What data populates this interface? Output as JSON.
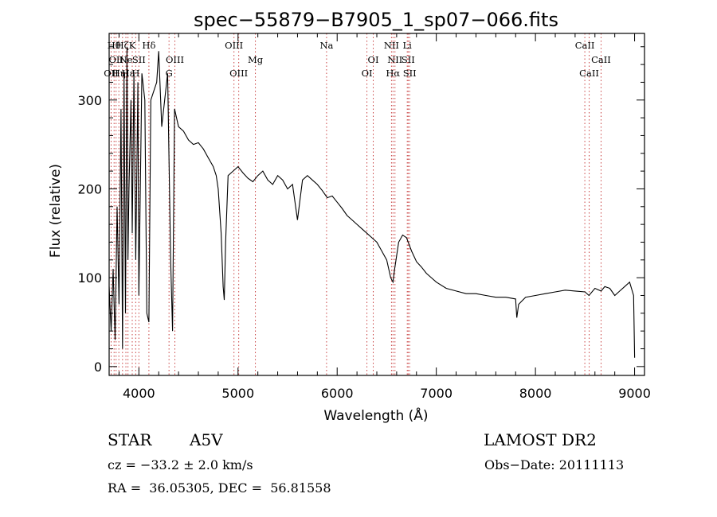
{
  "chart_data": {
    "type": "line",
    "title": "spec−55879−B7905_1_sp07−066.fits",
    "xlabel": "Wavelength (Å)",
    "ylabel": "Flux (relative)",
    "xlim": [
      3700,
      9100
    ],
    "ylim": [
      -10,
      375
    ],
    "xticks": [
      4000,
      5000,
      6000,
      7000,
      8000,
      9000
    ],
    "yticks": [
      0,
      100,
      200,
      300
    ],
    "grid": false,
    "series": [
      {
        "x": [
          3700,
          3720,
          3740,
          3760,
          3780,
          3800,
          3820,
          3835,
          3850,
          3865,
          3880,
          3890,
          3900,
          3920,
          3933,
          3950,
          3968,
          3990,
          4000,
          4030,
          4060,
          4080,
          4101,
          4120,
          4150,
          4180,
          4200,
          4230,
          4260,
          4290,
          4320,
          4340,
          4360,
          4380,
          4400,
          4450,
          4500,
          4550,
          4600,
          4650,
          4700,
          4750,
          4780,
          4800,
          4830,
          4850,
          4861,
          4875,
          4900,
          4950,
          5000,
          5050,
          5100,
          5150,
          5200,
          5250,
          5300,
          5350,
          5400,
          5450,
          5500,
          5550,
          5600,
          5650,
          5700,
          5750,
          5800,
          5850,
          5900,
          5950,
          6000,
          6050,
          6100,
          6150,
          6200,
          6250,
          6300,
          6350,
          6400,
          6450,
          6500,
          6540,
          6563,
          6580,
          6620,
          6660,
          6700,
          6750,
          6800,
          6850,
          6900,
          6950,
          7000,
          7100,
          7200,
          7300,
          7400,
          7500,
          7600,
          7700,
          7800,
          7812,
          7830,
          7900,
          8000,
          8100,
          8200,
          8300,
          8400,
          8500,
          8540,
          8600,
          8662,
          8700,
          8750,
          8800,
          8850,
          8900,
          8950,
          8990,
          9000
        ],
        "values": [
          90,
          40,
          110,
          30,
          180,
          70,
          290,
          20,
          330,
          60,
          360,
          120,
          200,
          300,
          150,
          330,
          120,
          320,
          80,
          330,
          300,
          60,
          50,
          300,
          310,
          320,
          355,
          270,
          300,
          330,
          120,
          40,
          290,
          280,
          270,
          265,
          255,
          250,
          252,
          245,
          235,
          225,
          215,
          200,
          150,
          90,
          75,
          140,
          215,
          220,
          225,
          218,
          212,
          208,
          215,
          220,
          210,
          205,
          215,
          210,
          200,
          205,
          165,
          210,
          215,
          210,
          205,
          198,
          190,
          192,
          185,
          178,
          170,
          165,
          160,
          155,
          150,
          145,
          140,
          130,
          120,
          100,
          95,
          110,
          140,
          148,
          145,
          130,
          118,
          112,
          105,
          100,
          95,
          88,
          85,
          82,
          82,
          80,
          78,
          78,
          76,
          55,
          70,
          78,
          80,
          82,
          84,
          86,
          85,
          84,
          80,
          88,
          85,
          90,
          88,
          80,
          85,
          90,
          95,
          80,
          10
        ]
      }
    ],
    "lines": [
      {
        "x": 3720,
        "label": "OII",
        "row": 3
      },
      {
        "x": 3750,
        "label": "Hθ",
        "row": 1
      },
      {
        "x": 3770,
        "label": "OII",
        "row": 2
      },
      {
        "x": 3798,
        "label": "Hη",
        "row": 3
      },
      {
        "x": 3835,
        "label": "Hζ",
        "row": 1
      },
      {
        "x": 3869,
        "label": "Ne",
        "row": 2
      },
      {
        "x": 3890,
        "label": "Hε",
        "row": 3
      },
      {
        "x": 3933,
        "label": "K",
        "row": 1
      },
      {
        "x": 3968,
        "label": "H",
        "row": 3
      },
      {
        "x": 4000,
        "label": "SII",
        "row": 2
      },
      {
        "x": 4101,
        "label": "Hδ",
        "row": 1
      },
      {
        "x": 4304,
        "label": "G",
        "row": 3
      },
      {
        "x": 4363,
        "label": "OIII",
        "row": 2
      },
      {
        "x": 4959,
        "label": "OIII",
        "row": 1
      },
      {
        "x": 5007,
        "label": "OIII",
        "row": 3
      },
      {
        "x": 5175,
        "label": "Mg",
        "row": 2
      },
      {
        "x": 5893,
        "label": "Na",
        "row": 1
      },
      {
        "x": 6300,
        "label": "OI",
        "row": 3
      },
      {
        "x": 6364,
        "label": "OI",
        "row": 2
      },
      {
        "x": 6548,
        "label": "NII",
        "row": 1
      },
      {
        "x": 6563,
        "label": "Hα",
        "row": 3
      },
      {
        "x": 6583,
        "label": "NII",
        "row": 2
      },
      {
        "x": 6707,
        "label": "Li",
        "row": 1
      },
      {
        "x": 6716,
        "label": "SII",
        "row": 2
      },
      {
        "x": 6731,
        "label": "SII",
        "row": 3
      },
      {
        "x": 8498,
        "label": "CaII",
        "row": 1
      },
      {
        "x": 8542,
        "label": "CaII",
        "row": 3
      },
      {
        "x": 8662,
        "label": "CaII",
        "row": 2
      }
    ]
  },
  "info": {
    "object_type": "STAR",
    "subclass": "A5V",
    "survey": "LAMOST DR2",
    "cz": "cz = −33.2 ± 2.0 km/s",
    "obs_date": "Obs−Date: 20111113",
    "coords": "RA =  36.05305, DEC =  56.81558"
  }
}
